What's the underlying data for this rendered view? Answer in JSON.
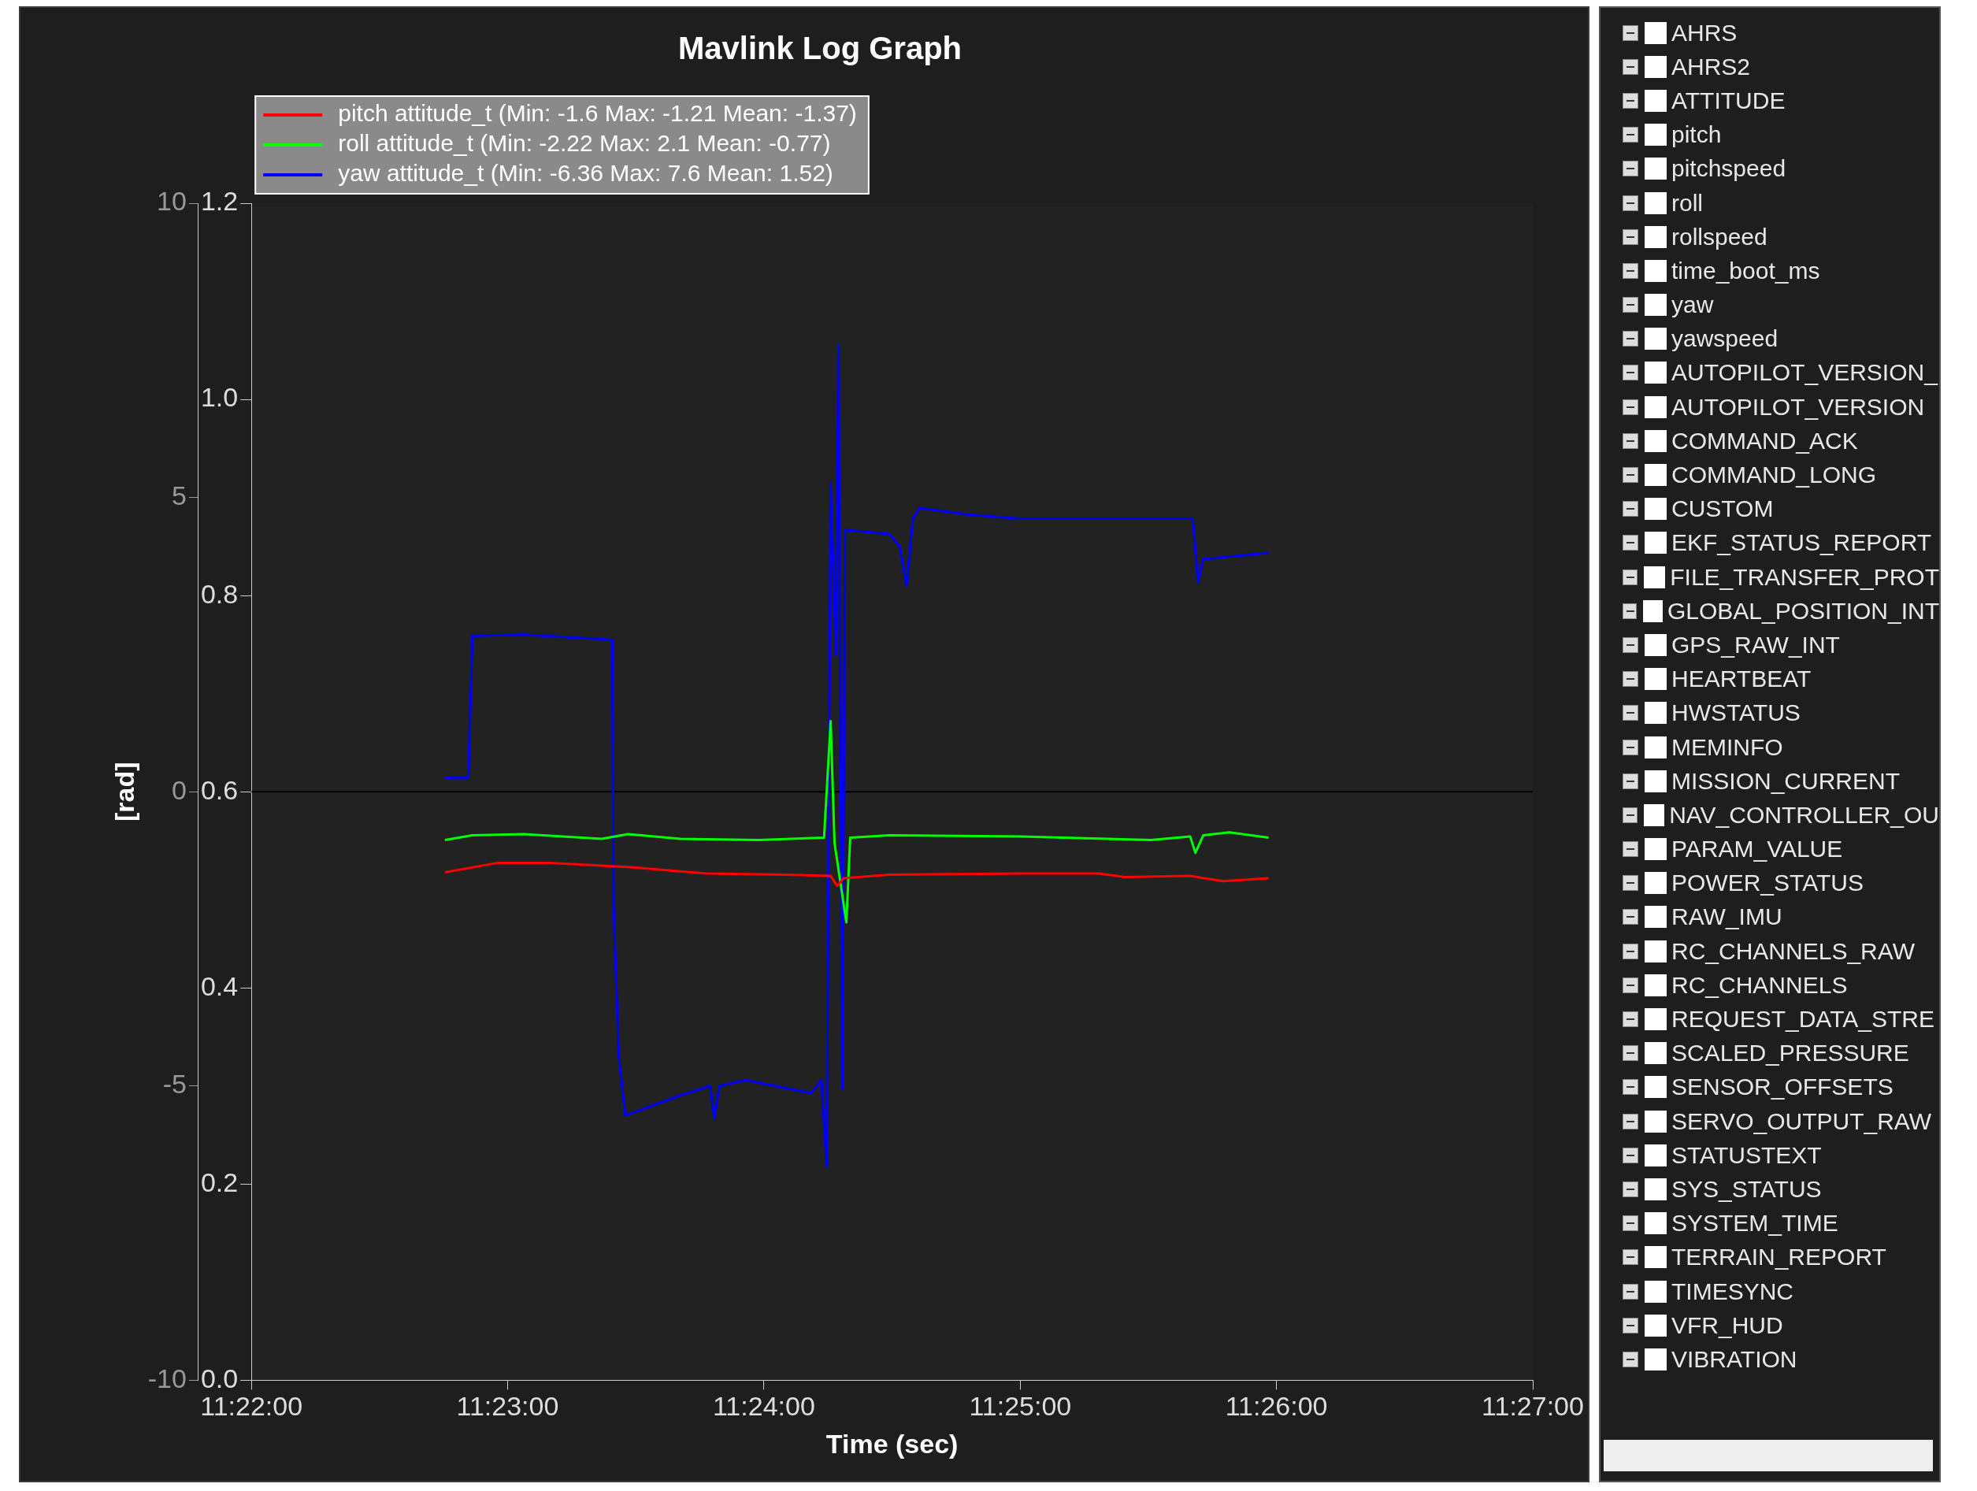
{
  "chart_data": {
    "type": "line",
    "title": "Mavlink Log Graph",
    "xlabel": "Time (sec)",
    "ylabel": "[rad]",
    "xlim": [
      11.36667,
      11.45
    ],
    "xticks": [
      {
        "value": 11.36667,
        "label": "11:22:00"
      },
      {
        "value": 11.38333,
        "label": "11:23:00"
      },
      {
        "value": 11.4,
        "label": "11:24:00"
      },
      {
        "value": 11.41667,
        "label": "11:25:00"
      },
      {
        "value": 11.43333,
        "label": "11:26:00"
      },
      {
        "value": 11.45,
        "label": "11:27:00"
      }
    ],
    "ylim": [
      -10,
      10
    ],
    "yticks": [
      -10,
      -5,
      0,
      5,
      10
    ],
    "y2lim": [
      0,
      1.2
    ],
    "y2ticks": [
      {
        "value": 0,
        "label": "0.0"
      },
      {
        "value": 0.2,
        "label": "0.2"
      },
      {
        "value": 0.4,
        "label": "0.4"
      },
      {
        "value": 0.6,
        "label": "0.6"
      },
      {
        "value": 0.8,
        "label": "0.8"
      },
      {
        "value": 1,
        "label": "1.0"
      },
      {
        "value": 1.2,
        "label": "1.2"
      }
    ],
    "grid": false,
    "legend": "top left",
    "marker": "none",
    "line_style": "solid",
    "ref_lines": [
      {
        "axis": "y",
        "value": 0,
        "color": "#000000"
      }
    ],
    "series": [
      {
        "name": "pitch attitude_t (Min: -1.6 Max: -1.21 Mean: -1.37)",
        "color": "#ff0000",
        "x": [
          11.37925,
          11.38265,
          11.38605,
          11.39116,
          11.39626,
          11.40136,
          11.40434,
          11.40476,
          11.40519,
          11.40816,
          11.41667,
          11.42177,
          11.42347,
          11.42772,
          11.42985,
          11.43282
        ],
        "values": [
          -1.37,
          -1.21,
          -1.21,
          -1.28,
          -1.39,
          -1.41,
          -1.43,
          -1.6,
          -1.47,
          -1.41,
          -1.39,
          -1.39,
          -1.45,
          -1.43,
          -1.52,
          -1.47
        ]
      },
      {
        "name": "roll attitude_t (Min: -2.22 Max: 2.1 Mean: -0.77)",
        "color": "#00ff00",
        "x": [
          11.37925,
          11.38104,
          11.38435,
          11.38946,
          11.39116,
          11.39456,
          11.39966,
          11.40391,
          11.40434,
          11.40459,
          11.40536,
          11.40561,
          11.40816,
          11.41667,
          11.42517,
          11.42772,
          11.42806,
          11.42857,
          11.43027,
          11.43282
        ],
        "values": [
          -0.82,
          -0.74,
          -0.72,
          -0.8,
          -0.72,
          -0.8,
          -0.82,
          -0.78,
          1.2,
          -0.87,
          -2.22,
          -0.78,
          -0.74,
          -0.76,
          -0.82,
          -0.76,
          -1.04,
          -0.74,
          -0.69,
          -0.78
        ]
      },
      {
        "name": "yaw attitude_t (Min: -6.36 Max: 7.6 Mean: 1.52)",
        "color": "#0000ff",
        "x": [
          11.37925,
          11.38078,
          11.38104,
          11.38435,
          11.38776,
          11.39014,
          11.39022,
          11.39056,
          11.39099,
          11.39456,
          11.39651,
          11.39677,
          11.39711,
          11.39881,
          11.40306,
          11.40374,
          11.40408,
          11.40434,
          11.40468,
          11.40485,
          11.4051,
          11.40527,
          11.40816,
          11.40884,
          11.40927,
          11.40969,
          11.41012,
          11.41327,
          11.41667,
          11.42347,
          11.42789,
          11.42823,
          11.42857,
          11.43282
        ],
        "values": [
          0.24,
          0.24,
          2.65,
          2.67,
          2.62,
          2.58,
          -1.9,
          -4.5,
          -5.5,
          -5.16,
          -5.0,
          -5.55,
          -5.0,
          -4.9,
          -5.12,
          -4.9,
          -6.36,
          5.25,
          2.32,
          7.6,
          -5.05,
          4.45,
          4.38,
          4.16,
          3.5,
          4.64,
          4.82,
          4.71,
          4.64,
          4.64,
          4.64,
          3.56,
          3.95,
          4.06
        ]
      }
    ],
    "annotations": [
      "AHRS",
      "AHRS2",
      "ATTITUDE",
      "pitch",
      "pitchspeed",
      "roll",
      "rollspeed",
      "time_boot_ms",
      "yaw",
      "yawspeed",
      "AUTOPILOT_VERSION_",
      "AUTOPILOT_VERSION",
      "COMMAND_ACK",
      "COMMAND_LONG",
      "CUSTOM",
      "EKF_STATUS_REPORT",
      "FILE_TRANSFER_PROT",
      "GLOBAL_POSITION_INT",
      "GPS_RAW_INT",
      "HEARTBEAT",
      "HWSTATUS",
      "MEMINFO",
      "MISSION_CURRENT",
      "NAV_CONTROLLER_OU",
      "PARAM_VALUE",
      "POWER_STATUS",
      "RAW_IMU",
      "RC_CHANNELS_RAW",
      "RC_CHANNELS",
      "REQUEST_DATA_STRE",
      "SCALED_PRESSURE",
      "SENSOR_OFFSETS",
      "SERVO_OUTPUT_RAW",
      "STATUSTEXT",
      "SYS_STATUS",
      "SYSTEM_TIME",
      "TERRAIN_REPORT",
      "TIMESYNC",
      "VFR_HUD",
      "VIBRATION"
    ]
  }
}
